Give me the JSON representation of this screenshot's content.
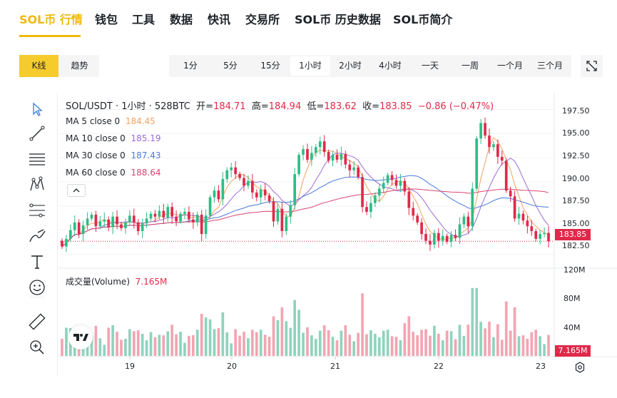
{
  "nav": {
    "items": [
      "SOL币 行情",
      "钱包",
      "工具",
      "数据",
      "快讯",
      "交易所",
      "SOL币 历史数据",
      "SOL币简介"
    ],
    "active_index": 0
  },
  "view_tabs": {
    "items": [
      "K线",
      "趋势"
    ],
    "active_index": 0
  },
  "intervals": {
    "items": [
      "1分",
      "5分",
      "15分",
      "1小时",
      "2小时",
      "4小时",
      "一天",
      "一周",
      "一个月",
      "三个月"
    ],
    "active_index": 3
  },
  "toolbar": {
    "icons": [
      "cursor-icon",
      "trend-line-icon",
      "horizontal-lines-icon",
      "pattern-icon",
      "fib-icon",
      "brush-icon",
      "text-icon",
      "emoji-icon",
      "ruler-icon",
      "zoom-in-icon"
    ]
  },
  "header": {
    "symbol": "SOL/USDT · 1小时 · 528BTC",
    "open_label": "开=",
    "open": "184.71",
    "high_label": "高=",
    "high": "184.94",
    "low_label": "低=",
    "low": "183.62",
    "close_label": "收=",
    "close": "183.85",
    "change": "−0.86 (−0.47%)"
  },
  "ma": [
    {
      "label": "MA 5 close 0",
      "value": "184.45",
      "color": "#f5a25d"
    },
    {
      "label": "MA 10 close 0",
      "value": "185.19",
      "color": "#9b6bd6"
    },
    {
      "label": "MA 30 close 0",
      "value": "187.43",
      "color": "#4b7bdc"
    },
    {
      "label": "MA 60 close 0",
      "value": "188.64",
      "color": "#d9456f"
    }
  ],
  "volume": {
    "label": "成交量(Volume)",
    "value": "7.165M"
  },
  "price_axis": [
    "197.50",
    "195.00",
    "192.50",
    "190.00",
    "187.50",
    "185.00",
    "182.50"
  ],
  "current_price": "183.85",
  "volume_axis": [
    "120M",
    "80M",
    "40M"
  ],
  "current_volume": "7.165M",
  "time_axis": [
    "19",
    "20",
    "21",
    "22",
    "23"
  ],
  "colors": {
    "up": "#2ebd85",
    "down": "#e0294a",
    "vol_up": "#8fd3bd",
    "vol_down": "#f2a5b2",
    "accent": "#F0B90B"
  },
  "chart_data": {
    "type": "candlestick",
    "interval": "1小时",
    "symbol": "SOL/USDT",
    "x_ticks": [
      "19",
      "20",
      "21",
      "22",
      "23"
    ],
    "ylim": [
      181.5,
      198.5
    ],
    "y_ticks": [
      182.5,
      185.0,
      187.5,
      190.0,
      192.5,
      195.0,
      197.5
    ],
    "volume_ticks": [
      "40M",
      "80M",
      "120M"
    ],
    "closes": [
      183.3,
      184.1,
      185.0,
      185.8,
      184.6,
      185.5,
      186.2,
      186.6,
      185.4,
      185.9,
      186.1,
      185.3,
      186.4,
      185.6,
      185.2,
      185.8,
      186.5,
      185.8,
      184.9,
      185.7,
      186.2,
      186.7,
      186.4,
      187.0,
      186.3,
      187.4,
      186.4,
      185.9,
      186.7,
      186.9,
      186.1,
      185.8,
      186.6,
      184.6,
      186.5,
      188.4,
      189.1,
      188.2,
      190.3,
      191.2,
      191.5,
      190.8,
      190.4,
      189.6,
      190.1,
      188.9,
      188.4,
      189.2,
      188.6,
      188.0,
      185.9,
      187.2,
      184.9,
      186.4,
      187.6,
      190.8,
      192.8,
      193.4,
      192.3,
      193.0,
      193.6,
      194.2,
      193.1,
      192.2,
      192.8,
      192.3,
      192.9,
      191.8,
      191.2,
      191.5,
      190.5,
      187.4,
      186.9,
      187.8,
      188.6,
      189.3,
      189.9,
      190.7,
      190.2,
      189.6,
      190.1,
      189.0,
      187.3,
      186.5,
      185.8,
      184.6,
      183.9,
      183.5,
      184.7,
      183.9,
      184.4,
      183.8,
      184.5,
      184.2,
      185.6,
      186.4,
      185.4,
      189.3,
      194.5,
      196.1,
      194.8,
      193.6,
      193.9,
      192.6,
      192.2,
      189.1,
      188.5,
      186.2,
      186.7,
      186.0,
      185.4,
      184.9,
      184.1,
      184.6,
      184.71,
      183.85
    ],
    "series": [
      {
        "name": "MA 5 close 0",
        "last": 184.45
      },
      {
        "name": "MA 10 close 0",
        "last": 185.19
      },
      {
        "name": "MA 30 close 0",
        "last": 187.43
      },
      {
        "name": "MA 60 close 0",
        "last": 188.64
      }
    ],
    "last_candle": {
      "open": 184.71,
      "high": 184.94,
      "low": 183.62,
      "close": 183.85
    },
    "last_volume": "7.165M"
  }
}
